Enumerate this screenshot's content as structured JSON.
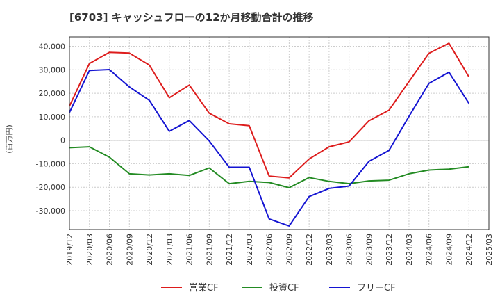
{
  "chart_data": {
    "type": "line",
    "title": "[6703]  キャッシュフローの12か月移動合計の推移",
    "ylabel": "(百万円)",
    "xlabel": "",
    "ylim": [
      -38000,
      44000
    ],
    "yticks": [
      40000,
      30000,
      20000,
      10000,
      0,
      -10000,
      -20000,
      -30000
    ],
    "ytick_labels": [
      "40,000",
      "30,000",
      "20,000",
      "10,000",
      "0",
      "-10,000",
      "-20,000",
      "-30,000"
    ],
    "categories": [
      "2019/12",
      "2020/03",
      "2020/06",
      "2020/09",
      "2020/12",
      "2021/03",
      "2021/06",
      "2021/09",
      "2021/12",
      "2022/03",
      "2022/06",
      "2022/09",
      "2022/12",
      "2023/03",
      "2023/06",
      "2023/09",
      "2023/12",
      "2024/03",
      "2024/06",
      "2024/09",
      "2024/12",
      "2025/03"
    ],
    "grid": true,
    "legend_position": "bottom",
    "series": [
      {
        "name": "営業CF",
        "color": "#dd1c1c",
        "values": [
          14500,
          32700,
          37400,
          37100,
          32000,
          18100,
          23500,
          11500,
          7000,
          6200,
          -15300,
          -16000,
          -8000,
          -2800,
          -700,
          8300,
          12800,
          25000,
          37000,
          41300,
          27000,
          null
        ]
      },
      {
        "name": "投資CF",
        "color": "#238b23",
        "values": [
          -3200,
          -2800,
          -7200,
          -14300,
          -14800,
          -14300,
          -15000,
          -11800,
          -18500,
          -17500,
          -18000,
          -20200,
          -15900,
          -17500,
          -18500,
          -17300,
          -17000,
          -14300,
          -12700,
          -12300,
          -11300,
          null
        ]
      },
      {
        "name": "フリーCF",
        "color": "#1414d2",
        "values": [
          11800,
          29700,
          30100,
          22700,
          17000,
          3800,
          8400,
          -300,
          -11500,
          -11500,
          -33500,
          -36500,
          -24000,
          -20500,
          -19500,
          -9000,
          -4300,
          10200,
          24200,
          29000,
          15700,
          null
        ]
      }
    ]
  }
}
